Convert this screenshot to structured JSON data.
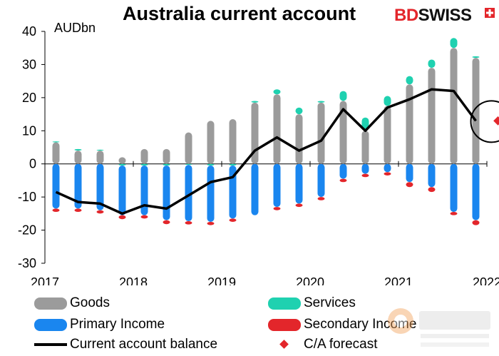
{
  "title": "Australia  current account",
  "brand": {
    "part1": "BD",
    "part2": "SWISS"
  },
  "colors": {
    "goods": "#9b9b9b",
    "services": "#1fd1b0",
    "primary_income": "#1a86ef",
    "secondary_income": "#e3262b",
    "balance": "#000000",
    "forecast": "#e3262b"
  },
  "chart_data": {
    "type": "bar",
    "unit_label": "AUDbn",
    "ylim": [
      -30,
      40
    ],
    "y_ticks": [
      -30,
      -20,
      -10,
      0,
      10,
      20,
      30,
      40
    ],
    "x_ticks": [
      "2017",
      "2018",
      "2019",
      "2020",
      "2021",
      "2022"
    ],
    "categories": [
      "2017Q1",
      "2017Q2",
      "2017Q3",
      "2017Q4",
      "2018Q1",
      "2018Q2",
      "2018Q3",
      "2018Q4",
      "2019Q1",
      "2019Q2",
      "2019Q3",
      "2019Q4",
      "2020Q1",
      "2020Q2",
      "2020Q3",
      "2020Q4",
      "2021Q1",
      "2021Q2",
      "2021Q3",
      "2021Q4"
    ],
    "series": [
      {
        "name": "Goods",
        "values": [
          6.5,
          4,
          4,
          2,
          4.5,
          4.5,
          9.5,
          13,
          13.5,
          18.5,
          21,
          15,
          18.5,
          19,
          10,
          17.5,
          24,
          29,
          35,
          32
        ]
      },
      {
        "name": "Services",
        "values": [
          0.3,
          0.5,
          0.3,
          -0.5,
          -0.5,
          -0.5,
          -0.3,
          -0.5,
          -0.5,
          0.5,
          1.5,
          2,
          0.5,
          3,
          4,
          3,
          2.5,
          2.5,
          3,
          0.5
        ]
      },
      {
        "name": "Primary Income",
        "values": [
          -13.5,
          -13.5,
          -14,
          -15,
          -15,
          -16.5,
          -17,
          -17,
          -16,
          -15.5,
          -13,
          -12,
          -10,
          -4.5,
          -3,
          -2.5,
          -5.5,
          -7,
          -14.5,
          -17
        ]
      },
      {
        "name": "Secondary Income",
        "values": [
          -1,
          -1,
          -1,
          -1.2,
          -1,
          -1.2,
          -1,
          -1,
          -1,
          0,
          -1,
          -1,
          -1,
          -1,
          -1,
          -1,
          -1.5,
          -1.5,
          -1,
          -1.5
        ]
      },
      {
        "name": "Current account balance",
        "values": [
          -8.5,
          -11.5,
          -12,
          -15,
          -12.5,
          -13.5,
          -9.5,
          -5.5,
          -4,
          4,
          8,
          4,
          7,
          16.5,
          10,
          17,
          19.5,
          22.5,
          22,
          13
        ]
      }
    ],
    "forecast": {
      "name": "C/A forecast",
      "category": "2022Q1",
      "value": 13
    },
    "legend": [
      "Goods",
      "Services",
      "Primary Income",
      "Secondary Income",
      "Current account balance",
      "C/A forecast"
    ],
    "grid": false,
    "legend_position": "bottom"
  }
}
